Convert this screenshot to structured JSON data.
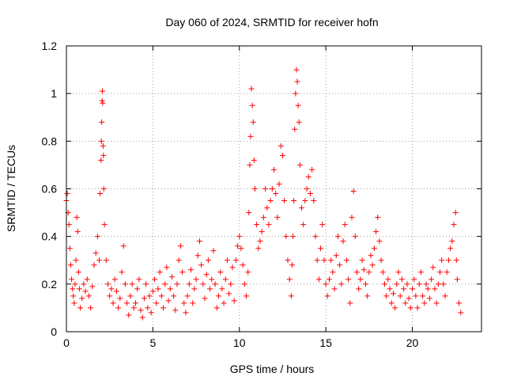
{
  "chart_data": {
    "type": "scatter",
    "title": "Day 060 of 2024, SRMTID for receiver hofn",
    "xlabel": "GPS time / hours",
    "ylabel": "SRMTID / TECUs",
    "xlim": [
      0,
      24
    ],
    "ylim": [
      0,
      1.2
    ],
    "x_ticks": [
      0,
      5,
      10,
      15,
      20
    ],
    "y_ticks": [
      0,
      0.2,
      0.4,
      0.6,
      0.8,
      1,
      1.2
    ],
    "x_tick_labels": [
      "0",
      "5",
      "10",
      "15",
      "20"
    ],
    "y_tick_labels": [
      "0",
      "0.2",
      "0.4",
      "0.6",
      "0.8",
      "1",
      "1.2"
    ],
    "grid": true,
    "marker": "plus",
    "color": "#ff0000",
    "series": [
      {
        "name": "SRMTID",
        "points": [
          [
            0.0,
            0.55
          ],
          [
            0.05,
            0.58
          ],
          [
            0.1,
            0.5
          ],
          [
            0.15,
            0.45
          ],
          [
            0.2,
            0.35
          ],
          [
            0.25,
            0.28
          ],
          [
            0.3,
            0.22
          ],
          [
            0.35,
            0.18
          ],
          [
            0.4,
            0.15
          ],
          [
            0.45,
            0.12
          ],
          [
            0.5,
            0.2
          ],
          [
            0.55,
            0.3
          ],
          [
            0.6,
            0.48
          ],
          [
            0.65,
            0.42
          ],
          [
            0.7,
            0.25
          ],
          [
            0.75,
            0.18
          ],
          [
            0.8,
            0.1
          ],
          [
            0.9,
            0.14
          ],
          [
            1.0,
            0.2
          ],
          [
            1.1,
            0.17
          ],
          [
            1.2,
            0.22
          ],
          [
            1.3,
            0.15
          ],
          [
            1.4,
            0.1
          ],
          [
            1.5,
            0.19
          ],
          [
            1.6,
            0.28
          ],
          [
            1.7,
            0.33
          ],
          [
            1.8,
            0.4
          ],
          [
            1.9,
            0.3
          ],
          [
            1.95,
            0.58
          ],
          [
            2.0,
            0.72
          ],
          [
            2.02,
            0.8
          ],
          [
            2.04,
            0.88
          ],
          [
            2.06,
            0.97
          ],
          [
            2.08,
            1.01
          ],
          [
            2.1,
            0.96
          ],
          [
            2.12,
            0.78
          ],
          [
            2.14,
            0.74
          ],
          [
            2.16,
            0.6
          ],
          [
            2.2,
            0.45
          ],
          [
            2.3,
            0.3
          ],
          [
            2.4,
            0.2
          ],
          [
            2.5,
            0.15
          ],
          [
            2.6,
            0.18
          ],
          [
            2.7,
            0.12
          ],
          [
            2.8,
            0.22
          ],
          [
            2.9,
            0.17
          ],
          [
            3.0,
            0.1
          ],
          [
            3.1,
            0.14
          ],
          [
            3.2,
            0.25
          ],
          [
            3.3,
            0.36
          ],
          [
            3.4,
            0.2
          ],
          [
            3.5,
            0.12
          ],
          [
            3.6,
            0.07
          ],
          [
            3.7,
            0.15
          ],
          [
            3.8,
            0.2
          ],
          [
            3.9,
            0.1
          ],
          [
            4.0,
            0.12
          ],
          [
            4.1,
            0.18
          ],
          [
            4.2,
            0.22
          ],
          [
            4.3,
            0.09
          ],
          [
            4.4,
            0.06
          ],
          [
            4.5,
            0.14
          ],
          [
            4.6,
            0.2
          ],
          [
            4.7,
            0.1
          ],
          [
            4.8,
            0.15
          ],
          [
            4.9,
            0.08
          ],
          [
            5.0,
            0.17
          ],
          [
            5.1,
            0.22
          ],
          [
            5.2,
            0.12
          ],
          [
            5.3,
            0.18
          ],
          [
            5.4,
            0.25
          ],
          [
            5.5,
            0.15
          ],
          [
            5.6,
            0.1
          ],
          [
            5.7,
            0.2
          ],
          [
            5.8,
            0.27
          ],
          [
            5.9,
            0.13
          ],
          [
            6.0,
            0.18
          ],
          [
            6.1,
            0.23
          ],
          [
            6.2,
            0.15
          ],
          [
            6.3,
            0.09
          ],
          [
            6.4,
            0.2
          ],
          [
            6.5,
            0.3
          ],
          [
            6.6,
            0.36
          ],
          [
            6.7,
            0.25
          ],
          [
            6.8,
            0.12
          ],
          [
            6.9,
            0.08
          ],
          [
            7.0,
            0.15
          ],
          [
            7.1,
            0.2
          ],
          [
            7.2,
            0.26
          ],
          [
            7.3,
            0.12
          ],
          [
            7.4,
            0.18
          ],
          [
            7.5,
            0.22
          ],
          [
            7.6,
            0.32
          ],
          [
            7.7,
            0.38
          ],
          [
            7.8,
            0.28
          ],
          [
            7.9,
            0.2
          ],
          [
            8.0,
            0.14
          ],
          [
            8.1,
            0.24
          ],
          [
            8.2,
            0.3
          ],
          [
            8.3,
            0.18
          ],
          [
            8.4,
            0.22
          ],
          [
            8.5,
            0.34
          ],
          [
            8.6,
            0.2
          ],
          [
            8.7,
            0.1
          ],
          [
            8.8,
            0.15
          ],
          [
            8.9,
            0.25
          ],
          [
            9.0,
            0.18
          ],
          [
            9.1,
            0.12
          ],
          [
            9.2,
            0.22
          ],
          [
            9.3,
            0.3
          ],
          [
            9.4,
            0.16
          ],
          [
            9.5,
            0.2
          ],
          [
            9.6,
            0.27
          ],
          [
            9.7,
            0.13
          ],
          [
            9.8,
            0.3
          ],
          [
            9.9,
            0.36
          ],
          [
            10.0,
            0.4
          ],
          [
            10.1,
            0.35
          ],
          [
            10.2,
            0.28
          ],
          [
            10.3,
            0.2
          ],
          [
            10.4,
            0.15
          ],
          [
            10.5,
            0.25
          ],
          [
            10.55,
            0.5
          ],
          [
            10.6,
            0.7
          ],
          [
            10.65,
            0.82
          ],
          [
            10.7,
            1.02
          ],
          [
            10.75,
            0.95
          ],
          [
            10.8,
            0.88
          ],
          [
            10.85,
            0.72
          ],
          [
            10.9,
            0.6
          ],
          [
            11.0,
            0.45
          ],
          [
            11.1,
            0.35
          ],
          [
            11.2,
            0.38
          ],
          [
            11.3,
            0.42
          ],
          [
            11.4,
            0.48
          ],
          [
            11.5,
            0.6
          ],
          [
            11.6,
            0.52
          ],
          [
            11.7,
            0.45
          ],
          [
            11.8,
            0.55
          ],
          [
            11.9,
            0.6
          ],
          [
            12.0,
            0.68
          ],
          [
            12.1,
            0.58
          ],
          [
            12.2,
            0.48
          ],
          [
            12.3,
            0.62
          ],
          [
            12.4,
            0.78
          ],
          [
            12.5,
            0.74
          ],
          [
            12.6,
            0.55
          ],
          [
            12.7,
            0.4
          ],
          [
            12.8,
            0.3
          ],
          [
            12.9,
            0.22
          ],
          [
            13.0,
            0.15
          ],
          [
            13.05,
            0.28
          ],
          [
            13.1,
            0.4
          ],
          [
            13.15,
            0.55
          ],
          [
            13.2,
            0.85
          ],
          [
            13.25,
            1.0
          ],
          [
            13.3,
            1.1
          ],
          [
            13.35,
            1.05
          ],
          [
            13.4,
            0.95
          ],
          [
            13.45,
            0.88
          ],
          [
            13.5,
            0.7
          ],
          [
            13.6,
            0.52
          ],
          [
            13.7,
            0.45
          ],
          [
            13.8,
            0.55
          ],
          [
            13.9,
            0.6
          ],
          [
            14.0,
            0.65
          ],
          [
            14.1,
            0.58
          ],
          [
            14.2,
            0.68
          ],
          [
            14.3,
            0.55
          ],
          [
            14.4,
            0.4
          ],
          [
            14.5,
            0.3
          ],
          [
            14.6,
            0.22
          ],
          [
            14.7,
            0.35
          ],
          [
            14.8,
            0.45
          ],
          [
            14.9,
            0.3
          ],
          [
            15.0,
            0.2
          ],
          [
            15.1,
            0.15
          ],
          [
            15.2,
            0.22
          ],
          [
            15.3,
            0.3
          ],
          [
            15.4,
            0.25
          ],
          [
            15.5,
            0.18
          ],
          [
            15.6,
            0.32
          ],
          [
            15.7,
            0.4
          ],
          [
            15.8,
            0.28
          ],
          [
            15.9,
            0.2
          ],
          [
            16.0,
            0.38
          ],
          [
            16.1,
            0.45
          ],
          [
            16.2,
            0.3
          ],
          [
            16.3,
            0.22
          ],
          [
            16.4,
            0.12
          ],
          [
            16.5,
            0.48
          ],
          [
            16.6,
            0.59
          ],
          [
            16.7,
            0.4
          ],
          [
            16.8,
            0.25
          ],
          [
            16.9,
            0.18
          ],
          [
            17.0,
            0.22
          ],
          [
            17.1,
            0.3
          ],
          [
            17.2,
            0.26
          ],
          [
            17.3,
            0.2
          ],
          [
            17.4,
            0.15
          ],
          [
            17.5,
            0.25
          ],
          [
            17.6,
            0.32
          ],
          [
            17.7,
            0.28
          ],
          [
            17.8,
            0.35
          ],
          [
            17.9,
            0.42
          ],
          [
            18.0,
            0.48
          ],
          [
            18.1,
            0.38
          ],
          [
            18.2,
            0.3
          ],
          [
            18.3,
            0.25
          ],
          [
            18.4,
            0.2
          ],
          [
            18.5,
            0.15
          ],
          [
            18.6,
            0.22
          ],
          [
            18.7,
            0.18
          ],
          [
            18.8,
            0.12
          ],
          [
            18.9,
            0.16
          ],
          [
            19.0,
            0.1
          ],
          [
            19.1,
            0.2
          ],
          [
            19.2,
            0.25
          ],
          [
            19.3,
            0.15
          ],
          [
            19.4,
            0.22
          ],
          [
            19.5,
            0.18
          ],
          [
            19.6,
            0.12
          ],
          [
            19.7,
            0.2
          ],
          [
            19.8,
            0.14
          ],
          [
            19.9,
            0.1
          ],
          [
            20.0,
            0.18
          ],
          [
            20.1,
            0.22
          ],
          [
            20.2,
            0.15
          ],
          [
            20.3,
            0.1
          ],
          [
            20.4,
            0.2
          ],
          [
            20.5,
            0.25
          ],
          [
            20.6,
            0.15
          ],
          [
            20.7,
            0.12
          ],
          [
            20.8,
            0.2
          ],
          [
            20.9,
            0.18
          ],
          [
            21.0,
            0.14
          ],
          [
            21.1,
            0.22
          ],
          [
            21.2,
            0.27
          ],
          [
            21.3,
            0.18
          ],
          [
            21.4,
            0.12
          ],
          [
            21.5,
            0.2
          ],
          [
            21.6,
            0.25
          ],
          [
            21.7,
            0.3
          ],
          [
            21.8,
            0.2
          ],
          [
            21.9,
            0.15
          ],
          [
            22.0,
            0.25
          ],
          [
            22.1,
            0.3
          ],
          [
            22.2,
            0.35
          ],
          [
            22.3,
            0.38
          ],
          [
            22.4,
            0.45
          ],
          [
            22.5,
            0.5
          ],
          [
            22.55,
            0.3
          ],
          [
            22.6,
            0.22
          ],
          [
            22.7,
            0.12
          ],
          [
            22.8,
            0.08
          ]
        ]
      }
    ]
  }
}
